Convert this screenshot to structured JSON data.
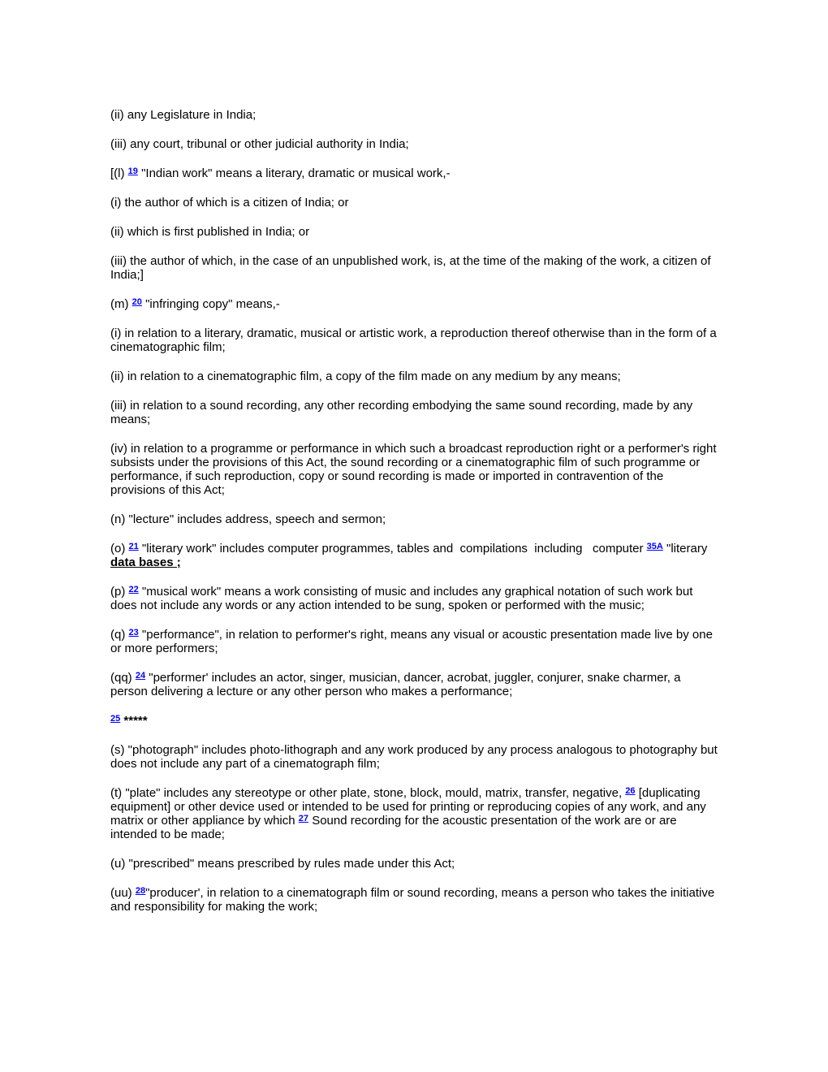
{
  "colors": {
    "background": "#ffffff",
    "text": "#000000",
    "link": "#0000ff"
  },
  "doc": {
    "p01": {
      "text": "(ii) any Legislature in India;"
    },
    "p02": {
      "text": "(iii) any court, tribunal or other judicial authority in India;"
    },
    "p03": {
      "pre": "[(l) ",
      "ref": "19",
      "post": " \"Indian work\" means a literary, dramatic or musical work,-"
    },
    "p04": {
      "text": "(i) the author of which is a citizen of India; or"
    },
    "p05": {
      "text": "(ii) which is first published in India; or"
    },
    "p06": {
      "text": "(iii) the author of which, in the case of an unpublished work, is, at the time of the making of the work, a citizen of India;]"
    },
    "p07": {
      "pre": "(m) ",
      "ref": "20",
      "post": " \"infringing copy\" means,-"
    },
    "p08": {
      "text": "(i) in relation to a literary, dramatic, musical or artistic work, a reproduction thereof otherwise than in the form of a cinematographic film;"
    },
    "p09": {
      "text": "(ii) in relation to a cinematographic film, a copy of the film made on any medium by any means;"
    },
    "p10": {
      "text": "(iii) in relation to a sound recording, any other recording embodying the same sound recording, made by any means;"
    },
    "p11": {
      "text": "(iv) in relation to a programme or performance in which such a broadcast reproduction right or a performer's right subsists under the provisions of this Act, the sound recording or a cinematographic film of such programme or performance, if such reproduction, copy or sound recording is made or imported in contravention of the provisions of this Act;"
    },
    "p12": {
      "text": "(n) \"lecture\" includes address, speech and sermon;"
    },
    "p13": {
      "pre": "(o) ",
      "ref1": "21",
      "mid": " \"literary work\" includes computer programmes, tables and  compilations  including   computer ",
      "ref2": "35A",
      "mid2": " \"literary ",
      "emph": "data bases ;"
    },
    "p14": {
      "pre": "(p) ",
      "ref": "22",
      "post": " \"musical work\" means a work consisting of music and includes any graphical notation of such work but does not include any words or any action intended to be sung, spoken or performed with the music;"
    },
    "p15": {
      "pre": "(q) ",
      "ref": "23",
      "post": " \"performance\", in relation to performer's right, means any visual or acoustic presentation made live by one or more performers;"
    },
    "p16": {
      "pre": "(qq) ",
      "ref": "24",
      "post": " \"performer' includes an actor, singer, musician, dancer, acrobat, juggler, conjurer, snake charmer, a person delivering a lecture or any other person who makes a performance;"
    },
    "p17": {
      "ref": "25",
      "stars": " *****"
    },
    "p18": {
      "text": "(s) \"photograph\" includes photo-lithograph and any work produced by any process analogous to photography but does not include any part of a cinematograph film;"
    },
    "p19": {
      "pre": "(t) \"plate\" includes any stereotype or other plate, stone, block, mould, matrix, transfer, negative, ",
      "ref1": "26",
      "mid": " [duplicating equipment] or other device used or intended to be used for printing or reproducing copies of any work, and any matrix or other appliance by which ",
      "ref2": "27",
      "post": " Sound recording for the acoustic presentation of the work are or are intended to be made;"
    },
    "p20": {
      "text": "(u) \"prescribed\" means prescribed by rules made under this Act;"
    },
    "p21": {
      "pre": "(uu) ",
      "ref": "28",
      "post": "\"producer', in relation to a cinematograph film or sound recording, means a person who takes the initiative and responsibility for making the work;"
    }
  }
}
